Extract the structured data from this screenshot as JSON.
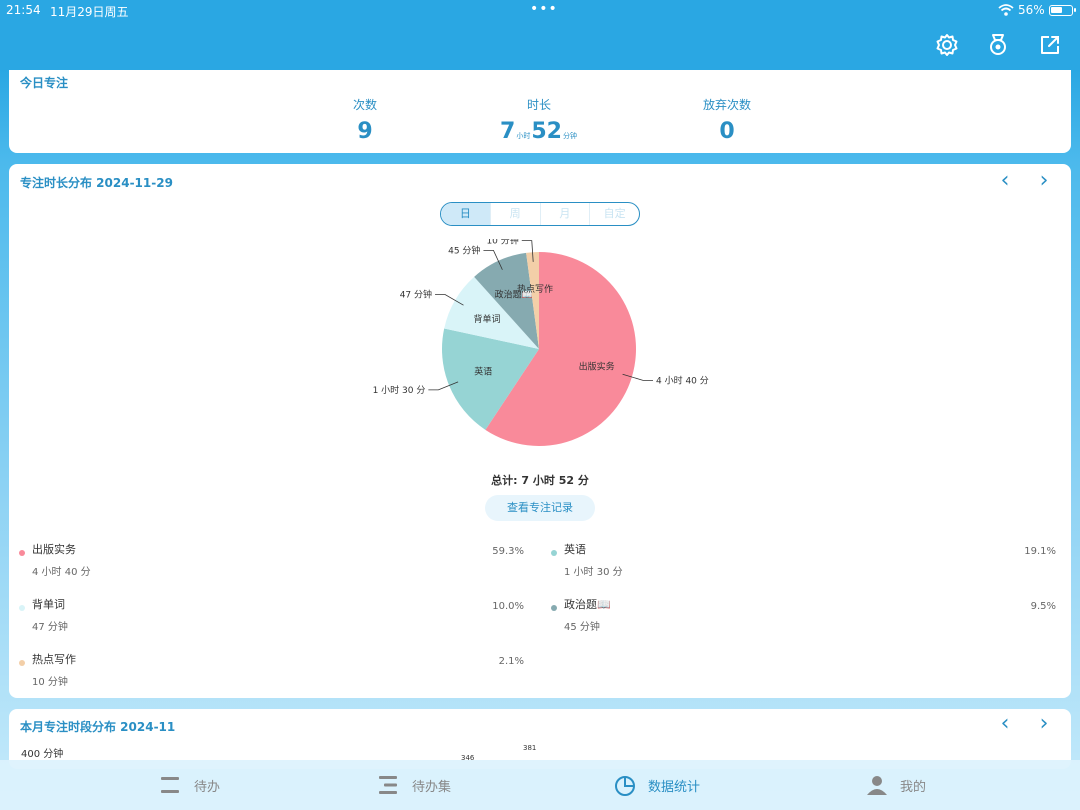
{
  "status_bar": {
    "time": "21:54",
    "date": "11月29日周五",
    "battery_pct": "56%",
    "battery_level": 0.56
  },
  "header": {
    "icons": [
      "gear-icon",
      "badge-icon",
      "share-icon"
    ]
  },
  "today": {
    "title": "今日专注",
    "count_label": "次数",
    "count_value": "9",
    "duration_label": "时长",
    "duration_hours": "7",
    "hours_unit": "小时",
    "duration_minutes": "52",
    "minutes_unit": "分钟",
    "abandon_label": "放弃次数",
    "abandon_value": "0"
  },
  "distribution": {
    "title": "专注时长分布 2024-11-29",
    "tabs": [
      "日",
      "周",
      "月",
      "自定"
    ],
    "active_tab": "日",
    "total": "总计: 7 小时 52 分",
    "records_button": "查看专注记录",
    "items": [
      {
        "name": "出版实务",
        "duration": "4 小时 40 分",
        "percent": "59.3%",
        "color": "#f98a9a"
      },
      {
        "name": "英语",
        "duration": "1 小时 30 分",
        "percent": "19.1%",
        "color": "#96d4d4"
      },
      {
        "name": "背单词",
        "duration": "47 分钟",
        "percent": "10.0%",
        "color": "#d9f4f8"
      },
      {
        "name": "政治题📖",
        "duration": "45 分钟",
        "percent": "9.5%",
        "color": "#86aab0"
      },
      {
        "name": "热点写作",
        "duration": "10 分钟",
        "percent": "2.1%",
        "color": "#f3cfa8"
      }
    ]
  },
  "chart_data": {
    "type": "pie",
    "categories": [
      "出版实务",
      "英语",
      "背单词",
      "政治题📖",
      "热点写作"
    ],
    "values": [
      280,
      90,
      47,
      45,
      10
    ],
    "value_labels": [
      "4 小时 40 分",
      "1 小时 30 分",
      "47 分钟",
      "45 分钟",
      "10 分钟"
    ],
    "percents": [
      59.3,
      19.1,
      10.0,
      9.5,
      2.1
    ],
    "colors": [
      "#f98a9a",
      "#96d4d4",
      "#d9f4f8",
      "#86aab0",
      "#f3cfa8"
    ]
  },
  "month": {
    "title": "本月专注时段分布  2024-11",
    "y_max_label": "400 分钟",
    "bar_labels": [
      "346",
      "381"
    ]
  },
  "tabbar": {
    "items": [
      {
        "label": "待办",
        "icon": "todo-icon",
        "active": false
      },
      {
        "label": "待办集",
        "icon": "todo-set-icon",
        "active": false
      },
      {
        "label": "数据统计",
        "icon": "stats-pie-icon",
        "active": true
      },
      {
        "label": "我的",
        "icon": "user-icon",
        "active": false
      }
    ]
  }
}
